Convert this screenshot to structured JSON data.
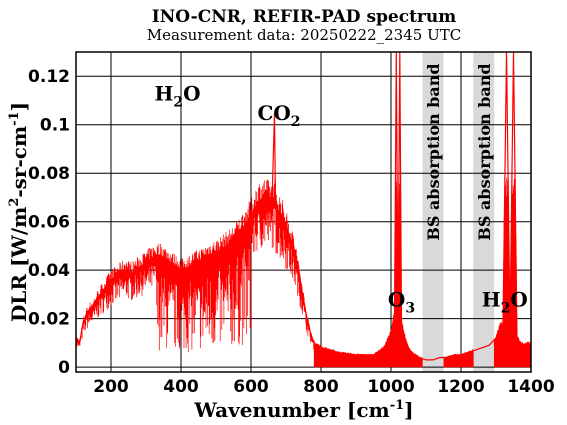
{
  "chart_data": {
    "type": "line",
    "title": "INO-CNR, REFIR-PAD spectrum",
    "subtitle": "Measurement data: 20250222_2345 UTC",
    "xlabel": "Wavenumber [cm",
    "xlabel_sup": "-1",
    "xlabel_end": "]",
    "ylabel": "DLR [W/m",
    "ylabel_sup1": "2",
    "ylabel_mid": "-sr-cm",
    "ylabel_sup2": "-1",
    "ylabel_end": "]",
    "xlim": [
      100,
      1400
    ],
    "ylim": [
      -0.002,
      0.13
    ],
    "xticks": [
      "200",
      "400",
      "600",
      "800",
      "1000",
      "1200",
      "1400"
    ],
    "yticks": [
      "0",
      "0.02",
      "0.04",
      "0.06",
      "0.08",
      "0.1",
      "0.12"
    ],
    "grid": true,
    "series_color": "#ff0000",
    "band_color": "#d9d9d9",
    "series": [
      {
        "x": [
          100,
          110,
          120,
          130,
          140,
          150,
          160,
          170,
          180,
          190,
          200,
          220,
          240,
          260,
          280,
          300,
          320,
          340,
          360,
          380,
          400,
          420,
          440,
          460,
          480,
          500,
          520,
          540,
          560,
          580,
          600,
          610,
          620,
          630,
          640,
          650,
          660,
          667,
          670,
          680,
          690,
          700,
          710,
          720,
          730,
          740,
          750,
          760,
          770,
          780,
          800,
          850,
          900,
          950,
          980,
          1000,
          1010,
          1015,
          1020,
          1025,
          1030,
          1040,
          1050,
          1060,
          1080,
          1100,
          1120,
          1140,
          1160,
          1180,
          1200,
          1220,
          1240,
          1260,
          1280,
          1300,
          1310,
          1320,
          1330,
          1340,
          1350,
          1360,
          1370,
          1380,
          1390,
          1400
        ],
        "y": [
          0.012,
          0.01,
          0.018,
          0.022,
          0.024,
          0.025,
          0.028,
          0.03,
          0.032,
          0.034,
          0.036,
          0.038,
          0.04,
          0.039,
          0.041,
          0.043,
          0.045,
          0.046,
          0.044,
          0.042,
          0.04,
          0.041,
          0.043,
          0.044,
          0.046,
          0.047,
          0.049,
          0.051,
          0.054,
          0.058,
          0.062,
          0.065,
          0.068,
          0.069,
          0.07,
          0.069,
          0.068,
          0.105,
          0.066,
          0.064,
          0.062,
          0.058,
          0.054,
          0.05,
          0.044,
          0.036,
          0.028,
          0.02,
          0.014,
          0.01,
          0.008,
          0.006,
          0.005,
          0.005,
          0.008,
          0.014,
          0.022,
          0.13,
          0.024,
          0.13,
          0.018,
          0.012,
          0.008,
          0.006,
          0.004,
          0.003,
          0.003,
          0.004,
          0.004,
          0.005,
          0.005,
          0.006,
          0.007,
          0.008,
          0.009,
          0.012,
          0.016,
          0.018,
          0.13,
          0.016,
          0.13,
          0.012,
          0.01,
          0.009,
          0.01,
          0.009
        ]
      }
    ],
    "bands": [
      {
        "range": [
          1090,
          1150
        ],
        "label": "BS absorption band"
      },
      {
        "range": [
          1235,
          1295
        ],
        "label": "BS absorption band"
      }
    ],
    "annotations": [
      {
        "main": "H",
        "sub": "2",
        "tail": "O",
        "x": 390,
        "y": 0.11
      },
      {
        "main": "CO",
        "sub": "2",
        "tail": "",
        "x": 680,
        "y": 0.102
      },
      {
        "main": "O",
        "sub": "3",
        "tail": "",
        "x": 1030,
        "y": 0.025
      },
      {
        "main": "H",
        "sub": "2",
        "tail": "O",
        "x": 1325,
        "y": 0.025
      }
    ]
  }
}
